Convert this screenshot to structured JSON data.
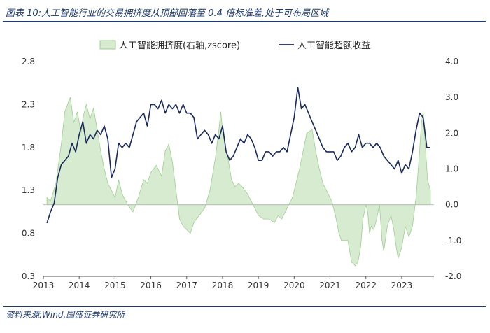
{
  "title": "图表 10:人工智能行业的交易拥挤度从顶部回落至 0.4 倍标准差,处于可布局区域",
  "source": "资料来源:Wind,国盛证券研究所",
  "colors": {
    "area_fill": "#d6ebcf",
    "area_stroke": "#9fcf91",
    "line": "#1a2a5e",
    "accent": "#1f3a6e",
    "zero_line": "#bfbfbf"
  },
  "chart_data": {
    "type": "line",
    "title": "",
    "legend": [
      "人工智能拥挤度(右轴,zscore)",
      "人工智能超额收益"
    ],
    "legend_position": "top",
    "x_ticks": [
      "2013",
      "2014",
      "2015",
      "2016",
      "2017",
      "2018",
      "2019",
      "2020",
      "2021",
      "2022",
      "2023"
    ],
    "x_range": [
      2013.0,
      2023.9
    ],
    "left_axis": {
      "ticks": [
        "0.3",
        "0.8",
        "1.3",
        "1.8",
        "2.3",
        "2.8"
      ],
      "range": [
        0.3,
        2.8
      ]
    },
    "right_axis": {
      "ticks": [
        "-2.0",
        "-1.0",
        "0.0",
        "1.0",
        "2.0",
        "3.0",
        "4.0"
      ],
      "range": [
        -2.0,
        4.0
      ]
    },
    "series": [
      {
        "name": "人工智能拥挤度(右轴,zscore)",
        "type": "area",
        "axis": "right",
        "x": [
          2013.1,
          2013.2,
          2013.35,
          2013.5,
          2013.6,
          2013.75,
          2013.85,
          2013.95,
          2014.05,
          2014.12,
          2014.2,
          2014.3,
          2014.4,
          2014.5,
          2014.6,
          2014.7,
          2014.8,
          2014.9,
          2015.0,
          2015.1,
          2015.2,
          2015.35,
          2015.5,
          2015.65,
          2015.8,
          2015.9,
          2016.0,
          2016.15,
          2016.3,
          2016.4,
          2016.5,
          2016.6,
          2016.7,
          2016.8,
          2016.9,
          2017.0,
          2017.1,
          2017.2,
          2017.35,
          2017.5,
          2017.65,
          2017.8,
          2017.9,
          2017.95,
          2018.0,
          2018.05,
          2018.15,
          2018.25,
          2018.35,
          2018.45,
          2018.55,
          2018.7,
          2018.85,
          2019.0,
          2019.15,
          2019.3,
          2019.45,
          2019.55,
          2019.65,
          2019.75,
          2019.85,
          2019.95,
          2020.05,
          2020.15,
          2020.25,
          2020.35,
          2020.5,
          2020.6,
          2020.7,
          2020.8,
          2020.9,
          2021.0,
          2021.05,
          2021.15,
          2021.25,
          2021.32,
          2021.4,
          2021.5,
          2021.6,
          2021.7,
          2021.78,
          2021.85,
          2021.92,
          2022.0,
          2022.05,
          2022.1,
          2022.15,
          2022.22,
          2022.3,
          2022.38,
          2022.45,
          2022.5,
          2022.6,
          2022.7,
          2022.78,
          2022.85,
          2022.9,
          2023.0,
          2023.1,
          2023.2,
          2023.3,
          2023.4,
          2023.5,
          2023.55,
          2023.6,
          2023.65,
          2023.72,
          2023.8
        ],
        "values": [
          0.2,
          0.1,
          0.6,
          1.7,
          2.6,
          3.0,
          2.3,
          2.6,
          2.0,
          2.5,
          2.8,
          2.4,
          2.7,
          2.1,
          1.5,
          1.0,
          0.6,
          0.4,
          0.2,
          0.7,
          0.3,
          0.0,
          -0.2,
          0.2,
          0.7,
          0.6,
          0.9,
          1.1,
          0.8,
          1.5,
          1.7,
          1.2,
          0.4,
          -0.4,
          -0.6,
          -0.7,
          -0.8,
          -0.5,
          -0.3,
          -0.1,
          0.4,
          1.3,
          2.1,
          2.6,
          2.1,
          1.8,
          1.3,
          0.7,
          0.5,
          0.6,
          0.5,
          0.3,
          0.0,
          -0.3,
          -0.4,
          -0.4,
          -0.5,
          -0.3,
          -0.4,
          -0.2,
          0.0,
          0.2,
          0.6,
          1.0,
          1.5,
          2.0,
          2.1,
          1.5,
          1.0,
          0.6,
          0.4,
          0.2,
          0.1,
          -0.3,
          -0.8,
          -1.0,
          -1.0,
          -1.0,
          -1.6,
          -1.7,
          -1.6,
          -1.2,
          -0.4,
          0.0,
          -0.2,
          -0.8,
          -0.6,
          -0.7,
          -0.4,
          0.0,
          -1.0,
          -1.3,
          -0.6,
          -0.3,
          -0.7,
          -1.2,
          -1.5,
          -1.2,
          -0.6,
          -0.9,
          -0.6,
          0.2,
          1.5,
          2.3,
          2.6,
          1.8,
          0.7,
          0.4
        ]
      },
      {
        "name": "人工智能超额收益",
        "type": "line",
        "axis": "left",
        "x": [
          2013.1,
          2013.2,
          2013.3,
          2013.4,
          2013.5,
          2013.6,
          2013.7,
          2013.8,
          2013.9,
          2014.0,
          2014.1,
          2014.2,
          2014.3,
          2014.4,
          2014.5,
          2014.6,
          2014.7,
          2014.8,
          2014.9,
          2015.0,
          2015.1,
          2015.2,
          2015.3,
          2015.4,
          2015.5,
          2015.6,
          2015.7,
          2015.8,
          2015.9,
          2016.0,
          2016.1,
          2016.2,
          2016.3,
          2016.4,
          2016.5,
          2016.6,
          2016.7,
          2016.8,
          2016.9,
          2017.0,
          2017.1,
          2017.2,
          2017.3,
          2017.4,
          2017.5,
          2017.6,
          2017.7,
          2017.8,
          2017.9,
          2018.0,
          2018.1,
          2018.2,
          2018.3,
          2018.4,
          2018.5,
          2018.6,
          2018.7,
          2018.8,
          2018.9,
          2019.0,
          2019.1,
          2019.2,
          2019.3,
          2019.4,
          2019.5,
          2019.6,
          2019.7,
          2019.8,
          2019.9,
          2020.0,
          2020.1,
          2020.2,
          2020.3,
          2020.4,
          2020.5,
          2020.6,
          2020.7,
          2020.8,
          2020.9,
          2021.0,
          2021.1,
          2021.2,
          2021.3,
          2021.4,
          2021.5,
          2021.6,
          2021.7,
          2021.8,
          2021.9,
          2022.0,
          2022.1,
          2022.2,
          2022.3,
          2022.4,
          2022.5,
          2022.6,
          2022.7,
          2022.8,
          2022.9,
          2023.0,
          2023.1,
          2023.2,
          2023.3,
          2023.4,
          2023.5,
          2023.6,
          2023.7,
          2023.8
        ],
        "values": [
          0.92,
          1.05,
          1.15,
          1.45,
          1.6,
          1.65,
          1.7,
          1.85,
          1.75,
          1.95,
          2.1,
          1.85,
          1.95,
          1.9,
          2.0,
          1.95,
          2.05,
          1.9,
          1.45,
          1.55,
          1.85,
          1.8,
          1.85,
          1.8,
          1.95,
          2.1,
          2.15,
          2.2,
          2.05,
          2.3,
          2.3,
          2.25,
          2.35,
          2.2,
          2.3,
          2.25,
          2.3,
          2.2,
          2.3,
          2.2,
          2.2,
          2.15,
          1.9,
          1.95,
          2.0,
          1.95,
          1.85,
          1.95,
          1.9,
          2.05,
          1.75,
          1.65,
          1.7,
          1.8,
          1.9,
          1.85,
          1.95,
          1.9,
          1.8,
          1.65,
          1.65,
          1.75,
          1.75,
          1.7,
          1.75,
          1.75,
          1.8,
          1.75,
          1.95,
          2.15,
          2.5,
          2.25,
          2.3,
          2.2,
          2.1,
          2.0,
          1.9,
          1.8,
          1.75,
          1.75,
          1.75,
          1.65,
          1.7,
          1.8,
          1.85,
          1.75,
          1.8,
          1.95,
          1.8,
          1.85,
          1.85,
          1.8,
          1.85,
          1.8,
          1.7,
          1.65,
          1.6,
          1.55,
          1.65,
          1.5,
          1.6,
          1.55,
          1.75,
          2.0,
          2.2,
          2.15,
          1.8,
          1.8
        ]
      }
    ]
  }
}
